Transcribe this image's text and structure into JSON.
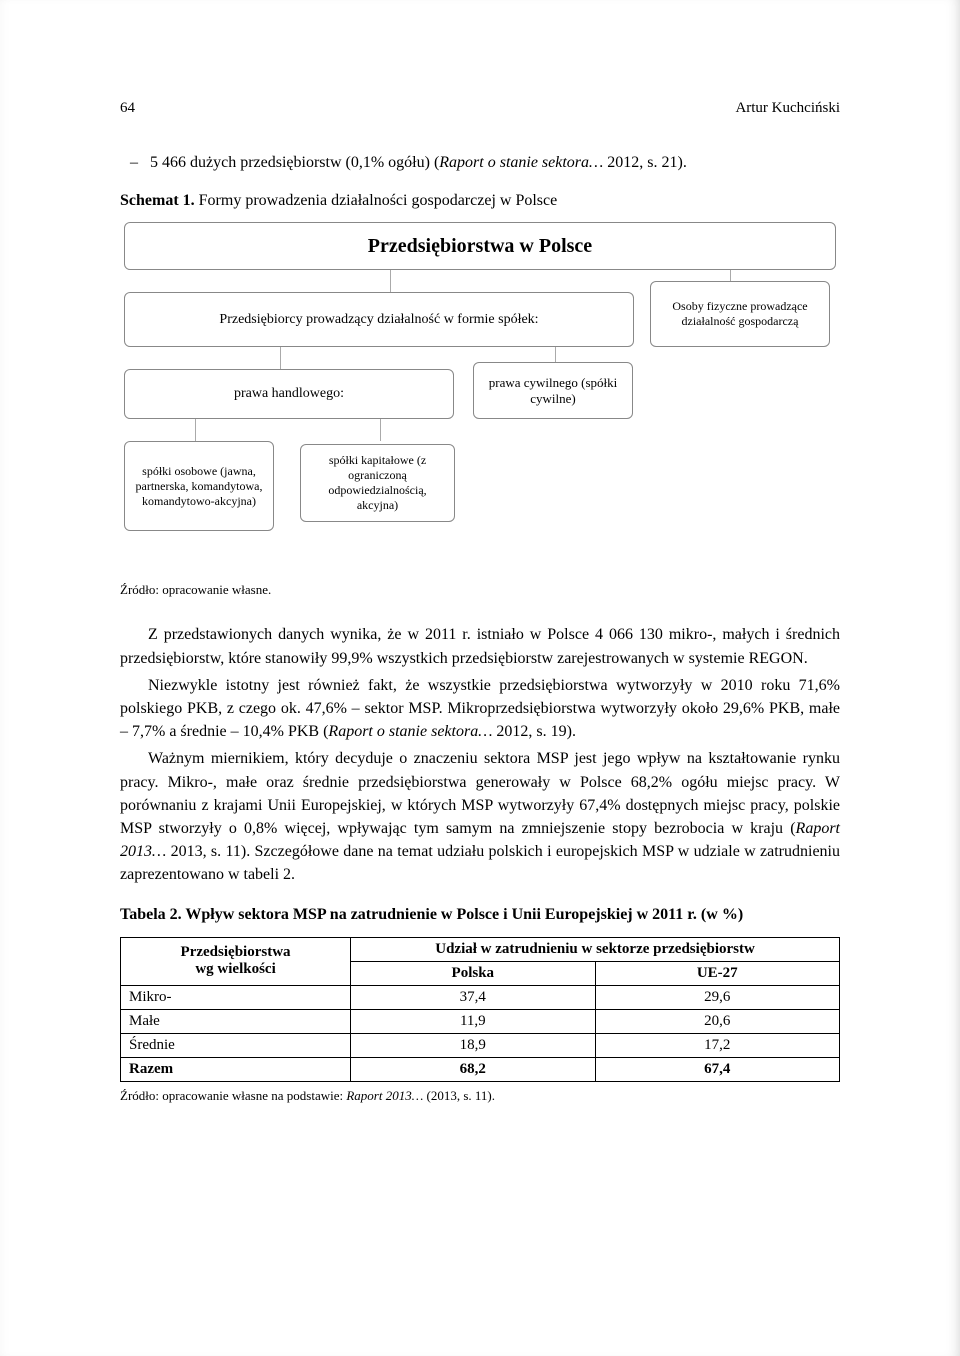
{
  "header": {
    "page_number": "64",
    "author": "Artur Kuchciński"
  },
  "bullet": {
    "dash": "–",
    "text_pre": "5 466 dużych przedsiębiorstw (0,1% ogółu) (",
    "text_ital": "Raport o stanie sektora…",
    "text_post": " 2012, s. 21)."
  },
  "schemat": {
    "label": "Schemat 1.",
    "title": " Formy prowadzenia działalności gospodarczej w Polsce"
  },
  "diagram": {
    "root": "Przedsiębiorstwa w Polsce",
    "l1a": "Przedsiębiorcy prowadzący działalność w formie spółek:",
    "l1b": "Osoby fizyczne prowadzące działalność gospodarczą",
    "l2a": "prawa handlowego:",
    "l2b": "prawa cywilnego (spółki cywilne)",
    "l3a": "spółki osobowe (jawna, partnerska, komandytowa, komandytowo-akcyjna)",
    "l3b": "spółki kapitałowe (z ograniczoną odpowiedzialnością, akcyjna)",
    "root_fontsize": 20,
    "l1_fontsize": 14,
    "leaf_fontsize": 12,
    "border_color": "#888888",
    "line_color": "#aaaaaa",
    "background": "#ffffff"
  },
  "zrodlo1": "Źródło: opracowanie własne.",
  "para1": "Z przedstawionych danych wynika, że w 2011 r. istniało w Polsce 4 066 130 mikro-, małych i średnich przedsiębiorstw, które stanowiły 99,9% wszystkich przedsiębiorstw zarejestrowanych w systemie REGON.",
  "para2": {
    "a": "Niezwykle istotny jest również fakt, że wszystkie przedsiębiorstwa wytworzyły w 2010 roku 71,6% polskiego PKB, z czego ok. 47,6% – sektor MSP. Mikroprzedsiębiorstwa wytworzyły około 29,6% PKB, małe – 7,7% a średnie – 10,4% PKB (",
    "i": "Raport o stanie sektora…",
    "b": " 2012, s. 19)."
  },
  "para3": {
    "a": "Ważnym miernikiem, który decyduje o znaczeniu sektora MSP jest jego wpływ na kształtowanie rynku pracy. Mikro-, małe oraz średnie przedsiębiorstwa generowały w Polsce 68,2% ogółu miejsc pracy. W porównaniu z krajami Unii Europejskiej, w których MSP wytworzyły 67,4% dostępnych miejsc pracy, polskie MSP stworzyły o 0,8% więcej, wpływając tym samym na zmniejszenie stopy bezrobocia w kraju (",
    "i": "Raport 2013…",
    "b": " 2013, s. 11). Szczegółowe dane na temat udziału polskich i europejskich MSP w udziale w zatrudnieniu zaprezentowano w tabeli 2."
  },
  "tabela": {
    "title": "Tabela 2. Wpływ sektora MSP na zatrudnienie w Polsce i Unii Europejskiej w 2011 r. (w %)",
    "header_col1_a": "Przedsiębiorstwa",
    "header_col1_b": "wg wielkości",
    "header_group": "Udział w zatrudnieniu w sektorze przedsiębiorstw",
    "header_col2": "Polska",
    "header_col3": "UE-27",
    "rows": [
      {
        "c1": "Mikro-",
        "c2": "37,4",
        "c3": "29,6",
        "bold": false
      },
      {
        "c1": "Małe",
        "c2": "11,9",
        "c3": "20,6",
        "bold": false
      },
      {
        "c1": "Średnie",
        "c2": "18,9",
        "c3": "17,2",
        "bold": false
      },
      {
        "c1": "Razem",
        "c2": "68,2",
        "c3": "67,4",
        "bold": true
      }
    ]
  },
  "zrodlo2": {
    "a": "Źródło: opracowanie własne na podstawie: ",
    "i": "Raport 2013…",
    "b": " (2013, s. 11)."
  }
}
